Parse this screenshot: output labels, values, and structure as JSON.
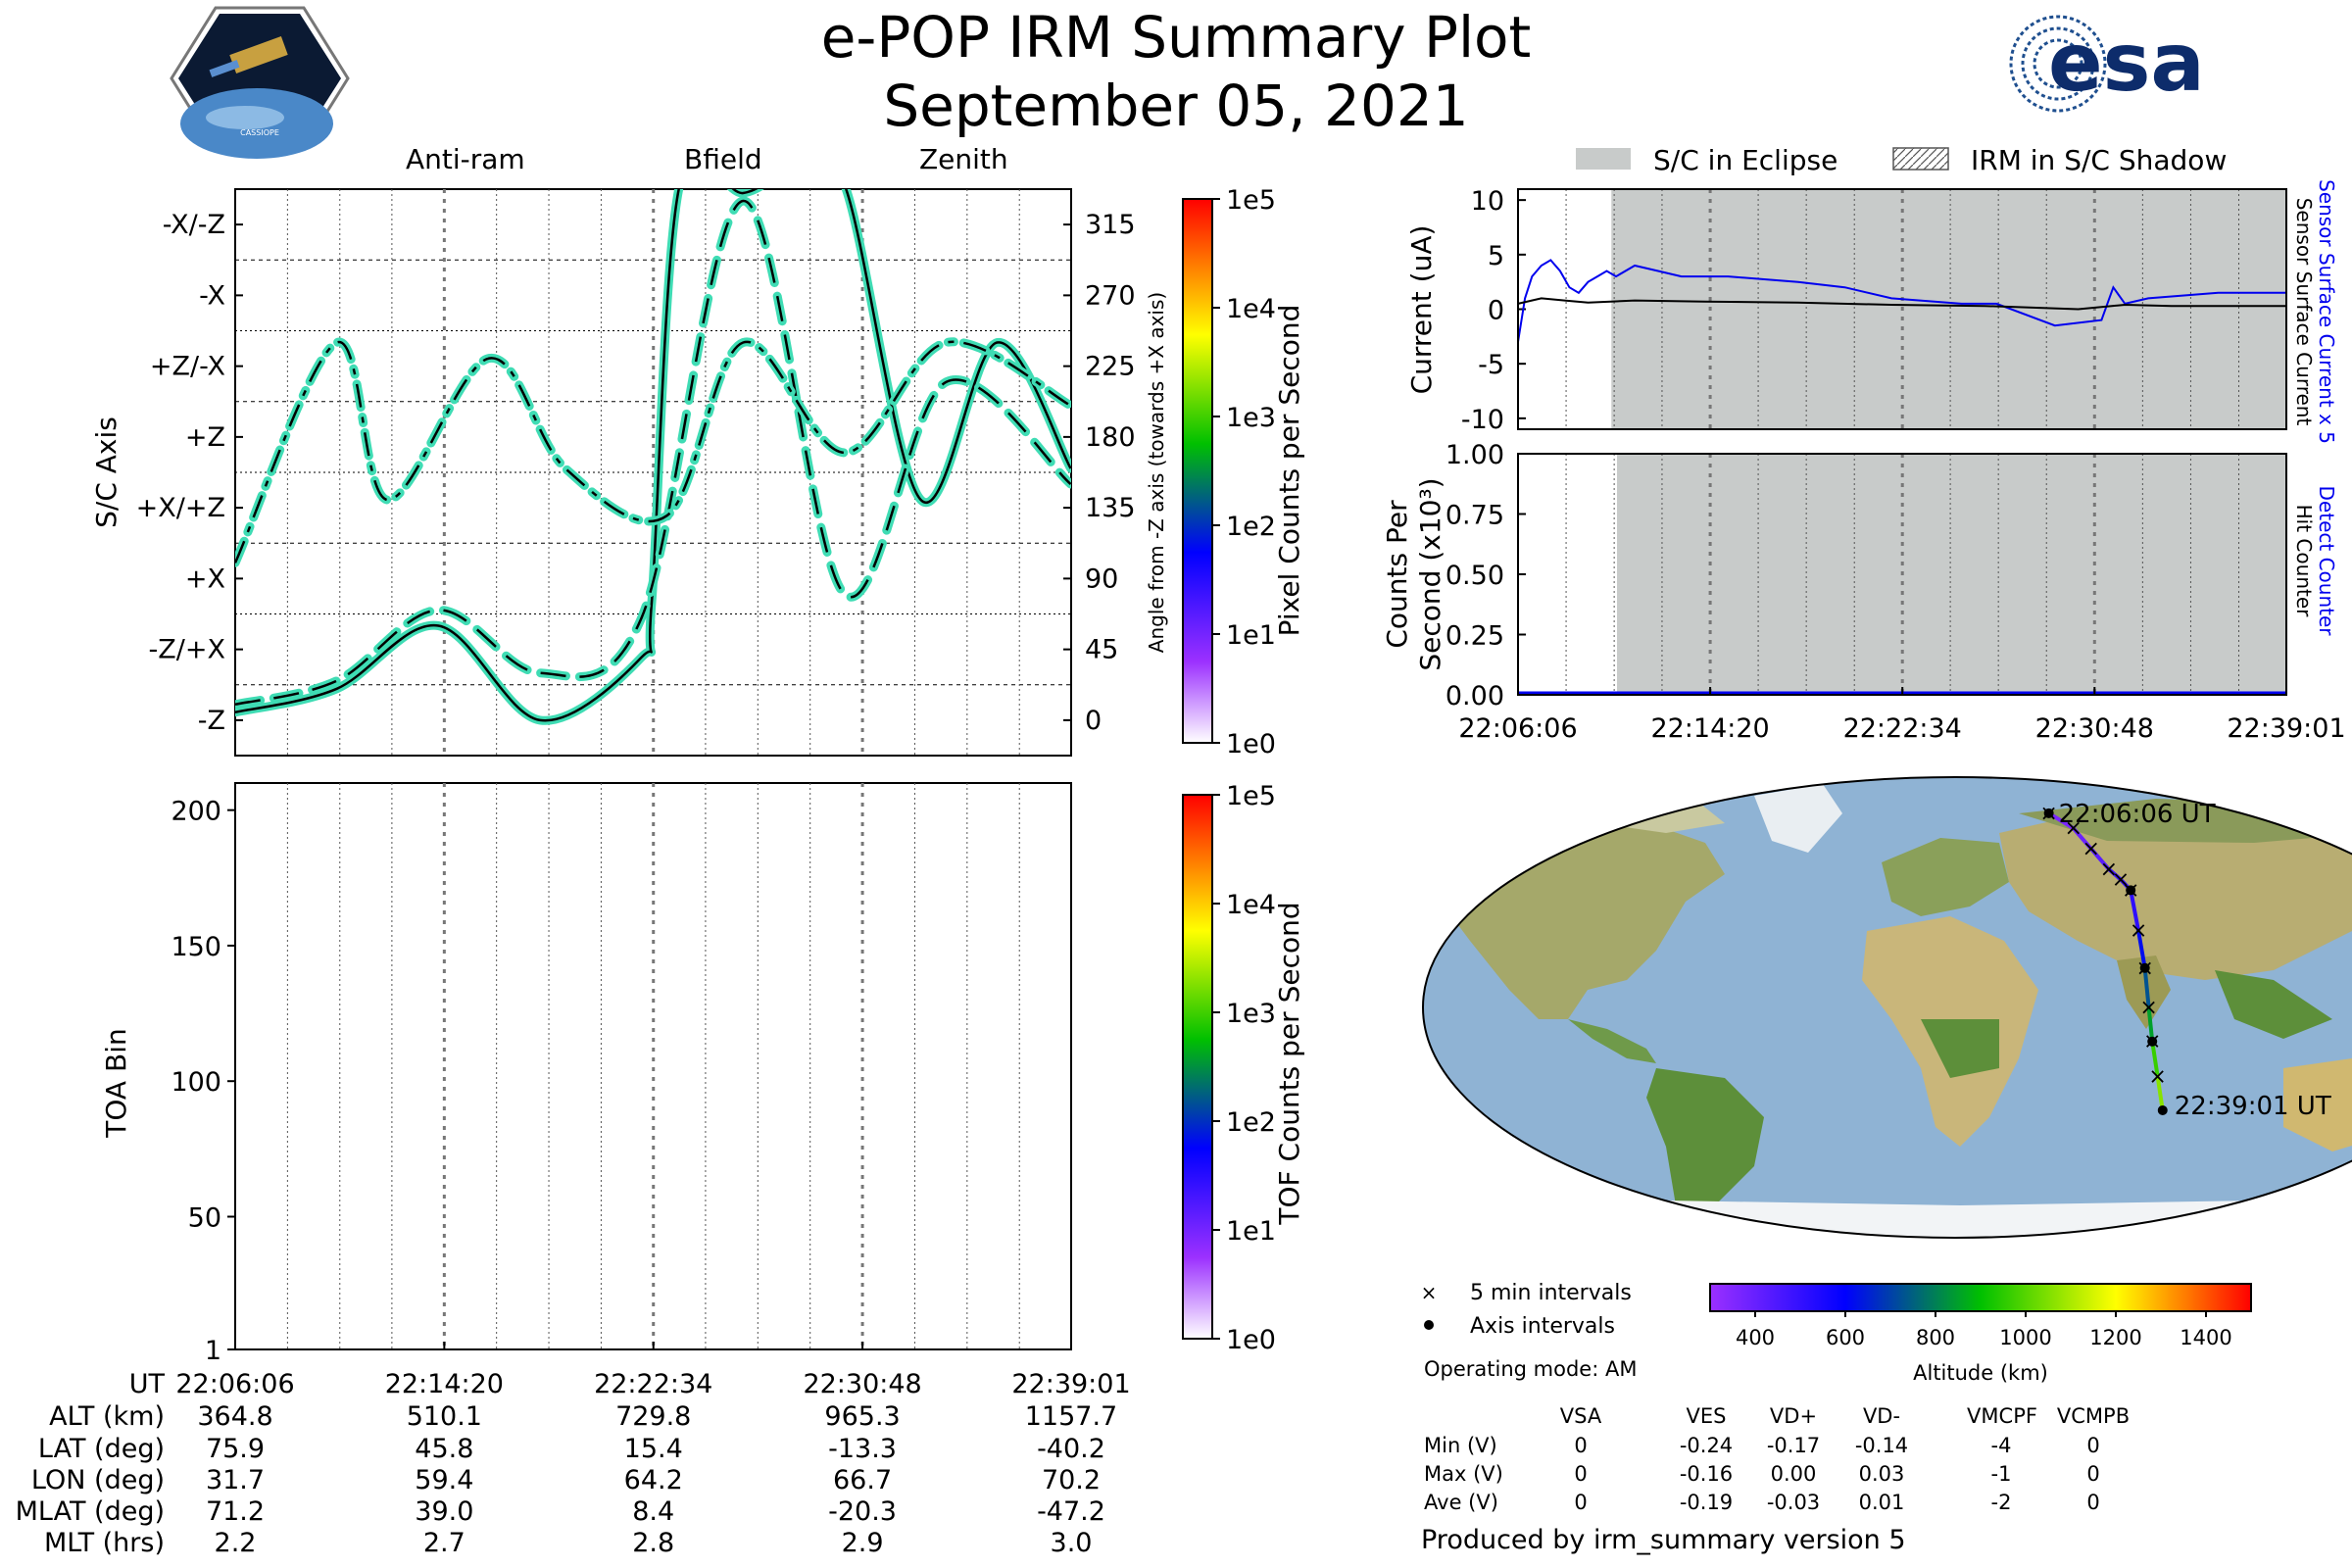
{
  "header": {
    "title": "e-POP IRM Summary Plot",
    "date": "September 05, 2021",
    "cassiope_label": "CASSIOPE",
    "esa_label": "esa"
  },
  "legend_top": {
    "items": [
      {
        "label": "Anti-ram",
        "style": "dashed"
      },
      {
        "label": "Bfield",
        "style": "solid"
      },
      {
        "label": "Zenith",
        "style": "dashdot"
      }
    ],
    "line_color": "#3fdcb4"
  },
  "axis_panel": {
    "ylabel": "S/C Axis",
    "y2label": "Angle from -Z axis (towards +X axis)",
    "y_tick_labels": [
      "-Z",
      "-Z/+X",
      "+X",
      "+X/+Z",
      "+Z",
      "+Z/-X",
      "-X",
      "-X/-Z"
    ],
    "y2_ticks": [
      "0",
      "45",
      "90",
      "135",
      "180",
      "225",
      "270",
      "315"
    ]
  },
  "pixel_colorbar": {
    "label": "Pixel Counts per Second",
    "ticks": [
      "1e0",
      "1e1",
      "1e2",
      "1e3",
      "1e4",
      "1e5"
    ]
  },
  "toa_panel": {
    "ylabel": "TOA Bin",
    "ticks": [
      "1",
      "50",
      "100",
      "150",
      "200"
    ]
  },
  "tof_colorbar": {
    "label": "TOF Counts per Second",
    "ticks": [
      "1e0",
      "1e1",
      "1e2",
      "1e3",
      "1e4",
      "1e5"
    ]
  },
  "ephemeris": {
    "row_labels": [
      "UT",
      "ALT (km)",
      "LAT (deg)",
      "LON (deg)",
      "MLAT (deg)",
      "MLT (hrs)"
    ],
    "columns": [
      [
        "22:06:06",
        "364.8",
        "75.9",
        "31.7",
        "71.2",
        "2.2"
      ],
      [
        "22:14:20",
        "510.1",
        "45.8",
        "59.4",
        "39.0",
        "2.7"
      ],
      [
        "22:22:34",
        "729.8",
        "15.4",
        "64.2",
        "8.4",
        "2.8"
      ],
      [
        "22:30:48",
        "965.3",
        "-13.3",
        "66.7",
        "-20.3",
        "2.9"
      ],
      [
        "22:39:01",
        "1157.7",
        "-40.2",
        "70.2",
        "-47.2",
        "3.0"
      ]
    ]
  },
  "legend_right": {
    "eclipse": "S/C in Eclipse",
    "shadow": "IRM in S/C Shadow"
  },
  "current_panel": {
    "ylabel": "Current (uA)",
    "ticks": [
      "10",
      "5",
      "0",
      "-5",
      "-10"
    ],
    "side_label_blue": "Sensor Surface Current x 5",
    "side_label_black": "Sensor Surface Current"
  },
  "counts_panel": {
    "ylabel_line1": "Counts Per",
    "ylabel_line2": "Second (x10³)",
    "ticks": [
      "1.00",
      "0.75",
      "0.50",
      "0.25",
      "0.00"
    ],
    "side_label_blue": "Detect Counter",
    "side_label_black": "Hit Counter"
  },
  "time_ticks": [
    "22:06:06",
    "22:14:20",
    "22:22:34",
    "22:30:48",
    "22:39:01"
  ],
  "map": {
    "start_label": "22:06:06 UT",
    "end_label": "22:39:01 UT"
  },
  "map_legend": {
    "five_min": "5 min intervals",
    "axis_int": "Axis intervals",
    "operating_mode": "Operating mode: AM"
  },
  "altitude_colorbar": {
    "label": "Altitude (km)",
    "ticks": [
      "400",
      "600",
      "800",
      "1000",
      "1200",
      "1400"
    ]
  },
  "voltage_table": {
    "headers": [
      "VSA",
      "VES",
      "VD+",
      "VD-",
      "VMCPF",
      "VCMPB"
    ],
    "rows": [
      {
        "label": "Min (V)",
        "values": [
          "0",
          "-0.24",
          "-0.17",
          "-0.14",
          "-4",
          "0"
        ]
      },
      {
        "label": "Max (V)",
        "values": [
          "0",
          "-0.16",
          "0.00",
          "0.03",
          "-1",
          "0"
        ]
      },
      {
        "label": "Ave (V)",
        "values": [
          "0",
          "-0.19",
          "-0.03",
          "0.01",
          "-2",
          "0"
        ]
      }
    ]
  },
  "footer": "Produced by irm_summary version 5",
  "chart_data": [
    {
      "type": "line",
      "title": "",
      "xlabel": "",
      "ylabel": "S/C Axis",
      "x_range": [
        "22:06:06",
        "22:39:01"
      ],
      "ylim": [
        -22.5,
        337.5
      ],
      "series": [
        {
          "name": "Bfield",
          "style": "solid",
          "x_min": [
            0,
            4,
            8,
            12,
            16,
            16.4,
            17.5,
            20,
            22,
            24,
            27,
            30,
            32.9
          ],
          "y_deg": [
            5,
            20,
            60,
            0,
            40,
            75,
            340,
            335,
            350,
            340,
            140,
            240,
            160
          ]
        },
        {
          "name": "Anti-ram",
          "style": "dashed",
          "x_min": [
            0,
            4,
            8,
            12,
            16,
            20,
            24,
            28,
            32.9
          ],
          "y_deg": [
            10,
            25,
            70,
            30,
            65,
            330,
            80,
            215,
            150
          ]
        },
        {
          "name": "Zenith",
          "style": "dashdot",
          "x_min": [
            0,
            4,
            6,
            10,
            13,
            17,
            20,
            24,
            28,
            32.9
          ],
          "y_deg": [
            100,
            240,
            140,
            230,
            160,
            130,
            240,
            170,
            240,
            200
          ]
        }
      ]
    },
    {
      "type": "heatmap",
      "title": "",
      "xlabel": "UT",
      "ylabel": "TOA Bin",
      "ylim": [
        1,
        210
      ],
      "values": []
    },
    {
      "type": "line",
      "title": "",
      "xlabel": "",
      "ylabel": "Current (uA)",
      "ylim": [
        -11,
        11
      ],
      "eclipse_start_min": 4,
      "series": [
        {
          "name": "Sensor Surface Current x 5",
          "color": "#0000ee",
          "x_min": [
            0,
            0.3,
            0.6,
            1.0,
            1.4,
            1.8,
            2.2,
            2.6,
            3.0,
            3.4,
            3.8,
            4.2,
            5,
            6,
            7,
            9,
            12,
            14,
            16,
            19,
            20.5,
            23,
            25,
            25.5,
            26,
            27,
            30,
            32.9
          ],
          "values": [
            -3,
            1,
            3,
            4,
            4.5,
            3.5,
            2,
            1.5,
            2.5,
            3,
            3.5,
            3,
            4,
            3.5,
            3,
            3,
            2.5,
            2,
            1,
            0.5,
            0.5,
            -1.5,
            -1,
            2,
            0.5,
            1,
            1.5,
            1.5
          ]
        },
        {
          "name": "Sensor Surface Current",
          "color": "#000000",
          "x_min": [
            0,
            1,
            2,
            3,
            5,
            8,
            12,
            16,
            20,
            24,
            26,
            28,
            30,
            32.9
          ],
          "values": [
            0.5,
            1,
            0.8,
            0.6,
            0.8,
            0.7,
            0.6,
            0.4,
            0.3,
            0.0,
            0.4,
            0.3,
            0.3,
            0.3
          ]
        }
      ]
    },
    {
      "type": "line",
      "title": "",
      "xlabel": "UT",
      "ylabel": "Counts Per Second (x10³)",
      "ylim": [
        0,
        1
      ],
      "series": [
        {
          "name": "Detect Counter",
          "color": "#0000ee",
          "x_min": [
            0,
            32.9
          ],
          "values": [
            0,
            0
          ]
        },
        {
          "name": "Hit Counter",
          "color": "#000000",
          "x_min": [
            0,
            32.9
          ],
          "values": [
            0,
            0
          ]
        }
      ]
    },
    {
      "type": "scatter",
      "title": "",
      "xlabel": "",
      "ylabel": "",
      "colorbar": "Altitude (km)",
      "x": [
        31.7,
        40,
        46,
        52,
        56,
        59.4,
        62,
        64.2,
        65.5,
        66.7,
        68.5,
        70.2
      ],
      "y": [
        75.9,
        70,
        62,
        54,
        50,
        45.8,
        30,
        15.4,
        0,
        -13.3,
        -27,
        -40.2
      ],
      "altitude_km": [
        364.8,
        395,
        430,
        470,
        490,
        510.1,
        620,
        729.8,
        850,
        965.3,
        1060,
        1157.7
      ]
    }
  ]
}
